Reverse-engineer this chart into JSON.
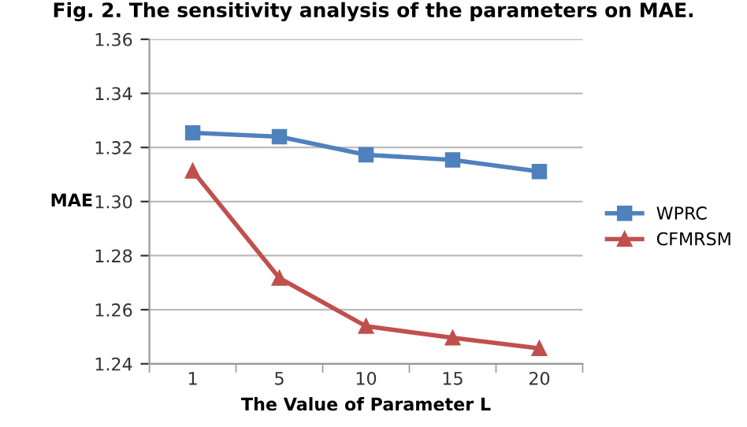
{
  "chart_data": {
    "type": "line",
    "title": "Fig. 2. The sensitivity analysis of the parameters on MAE.",
    "xlabel": "The Value of Parameter L",
    "ylabel": "MAE",
    "categories": [
      "1",
      "5",
      "10",
      "15",
      "20"
    ],
    "series": [
      {
        "name": "WPRC",
        "color": "#4f81bd",
        "marker": "square",
        "values": [
          1.3254,
          1.324,
          1.3173,
          1.3154,
          1.3111
        ]
      },
      {
        "name": "CFMRSM",
        "color": "#c0504d",
        "marker": "triangle",
        "values": [
          1.3113,
          1.2717,
          1.2539,
          1.2496,
          1.2457
        ]
      }
    ],
    "ylim": [
      1.24,
      1.36
    ],
    "yticks": [
      1.24,
      1.26,
      1.28,
      {
        "value": 1.3,
        "label": "1.30"
      },
      1.32,
      1.34,
      1.36
    ],
    "grid": "y",
    "legend": "right",
    "line_style": "solid"
  }
}
